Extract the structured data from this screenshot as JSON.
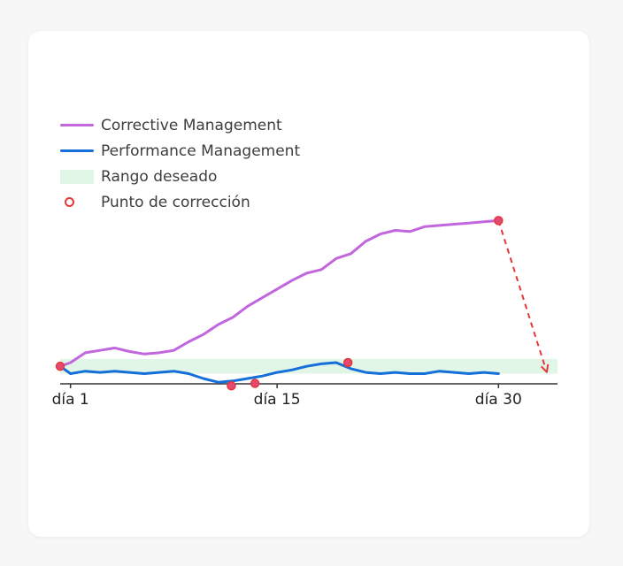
{
  "colors": {
    "corrective": "#c266de",
    "performance": "#1470d8",
    "band": "#e2f6e8",
    "correction": "#e6363a",
    "axis": "#333333"
  },
  "legend": [
    {
      "label": "Corrective Management",
      "kind": "line",
      "color": "#c266de"
    },
    {
      "label": "Performance Management",
      "kind": "line",
      "color": "#1470d8"
    },
    {
      "label": "Rango deseado",
      "kind": "band",
      "color": "#e2f6e8"
    },
    {
      "label": "Punto de corrección",
      "kind": "dot",
      "color": "#e6363a"
    }
  ],
  "chart_data": {
    "type": "line",
    "title": "",
    "xlabel": "",
    "ylabel": "",
    "x_tick_labels": [
      {
        "day": 1,
        "label": "día 1"
      },
      {
        "day": 15,
        "label": "día 15"
      },
      {
        "day": 30,
        "label": "día 30"
      }
    ],
    "xlim": [
      0.3,
      34
    ],
    "ylim": [
      -1,
      12
    ],
    "grid": false,
    "legend_position": "top-left",
    "desired_range": [
      -0.6,
      0.6
    ],
    "series": [
      {
        "name": "Corrective Management",
        "color": "#c266de",
        "points": [
          [
            0.3,
            0.0
          ],
          [
            1,
            0.3
          ],
          [
            2,
            1.1
          ],
          [
            3,
            1.3
          ],
          [
            4,
            1.5
          ],
          [
            5,
            1.2
          ],
          [
            6,
            1.0
          ],
          [
            7,
            1.1
          ],
          [
            8,
            1.3
          ],
          [
            9,
            2.0
          ],
          [
            10,
            2.6
          ],
          [
            11,
            3.4
          ],
          [
            12,
            4.0
          ],
          [
            13,
            4.9
          ],
          [
            14,
            5.6
          ],
          [
            15,
            6.3
          ],
          [
            16,
            7.0
          ],
          [
            17,
            7.6
          ],
          [
            18,
            7.9
          ],
          [
            19,
            8.8
          ],
          [
            20,
            9.2
          ],
          [
            21,
            10.2
          ],
          [
            22,
            10.8
          ],
          [
            23,
            11.1
          ],
          [
            24,
            11.0
          ],
          [
            25,
            11.4
          ],
          [
            26,
            11.5
          ],
          [
            27,
            11.6
          ],
          [
            28,
            11.7
          ],
          [
            29,
            11.8
          ],
          [
            30,
            11.9
          ]
        ]
      },
      {
        "name": "Performance Management",
        "color": "#1470d8",
        "points": [
          [
            0.3,
            0.0
          ],
          [
            1,
            -0.6
          ],
          [
            2,
            -0.4
          ],
          [
            3,
            -0.5
          ],
          [
            4,
            -0.4
          ],
          [
            5,
            -0.5
          ],
          [
            6,
            -0.6
          ],
          [
            7,
            -0.5
          ],
          [
            8,
            -0.4
          ],
          [
            9,
            -0.6
          ],
          [
            10,
            -1.0
          ],
          [
            11,
            -1.3
          ],
          [
            12,
            -1.2
          ],
          [
            13,
            -1.0
          ],
          [
            14,
            -0.8
          ],
          [
            15,
            -0.5
          ],
          [
            16,
            -0.3
          ],
          [
            17,
            0.0
          ],
          [
            18,
            0.2
          ],
          [
            19,
            0.3
          ],
          [
            20,
            -0.2
          ],
          [
            21,
            -0.5
          ],
          [
            22,
            -0.6
          ],
          [
            23,
            -0.5
          ],
          [
            24,
            -0.6
          ],
          [
            25,
            -0.6
          ],
          [
            26,
            -0.4
          ],
          [
            27,
            -0.5
          ],
          [
            28,
            -0.6
          ],
          [
            29,
            -0.5
          ],
          [
            30,
            -0.6
          ]
        ]
      }
    ],
    "correction_points": [
      {
        "x": 0.3,
        "y": 0.0
      },
      {
        "x": 11.9,
        "y": -1.6
      },
      {
        "x": 13.5,
        "y": -1.4
      },
      {
        "x": 19.8,
        "y": 0.3
      },
      {
        "x": 30.0,
        "y": 11.9
      }
    ],
    "correction_arrow": {
      "from": [
        30.0,
        11.9
      ],
      "to": [
        33.2,
        -0.2
      ]
    }
  }
}
